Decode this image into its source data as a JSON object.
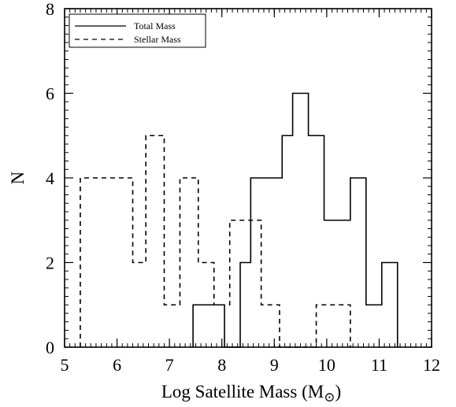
{
  "chart_data": {
    "type": "histogram-step",
    "xlabel": "Log Satellite Mass  (M",
    "xlabel_sub": "⊙",
    "xlabel_close": ")",
    "ylabel": "N",
    "xlim": [
      5,
      12
    ],
    "ylim": [
      0,
      8
    ],
    "x_ticks": [
      "5",
      "6",
      "7",
      "8",
      "9",
      "10",
      "11",
      "12"
    ],
    "y_ticks": [
      "0",
      "2",
      "4",
      "6",
      "8"
    ],
    "x_minor_step": 0.1,
    "y_minor_step": 0.2,
    "legend_position": "top-left",
    "series": [
      {
        "name": "Total Mass",
        "style": "solid",
        "bins": [
          {
            "x0": 7.45,
            "x1": 8.05,
            "y": 1
          },
          {
            "x0": 8.05,
            "x1": 8.35,
            "y": 0
          },
          {
            "x0": 8.35,
            "x1": 8.55,
            "y": 2
          },
          {
            "x0": 8.55,
            "x1": 9.15,
            "y": 4
          },
          {
            "x0": 9.15,
            "x1": 9.35,
            "y": 5
          },
          {
            "x0": 9.35,
            "x1": 9.65,
            "y": 6
          },
          {
            "x0": 9.65,
            "x1": 9.95,
            "y": 5
          },
          {
            "x0": 9.95,
            "x1": 10.45,
            "y": 3
          },
          {
            "x0": 10.45,
            "x1": 10.75,
            "y": 4
          },
          {
            "x0": 10.75,
            "x1": 11.05,
            "y": 1
          },
          {
            "x0": 11.05,
            "x1": 11.35,
            "y": 2
          }
        ]
      },
      {
        "name": "Stellar Mass",
        "style": "dashed",
        "bins": [
          {
            "x0": 5.3,
            "x1": 6.3,
            "y": 4
          },
          {
            "x0": 6.3,
            "x1": 6.55,
            "y": 2
          },
          {
            "x0": 6.55,
            "x1": 6.9,
            "y": 5
          },
          {
            "x0": 6.9,
            "x1": 7.2,
            "y": 1
          },
          {
            "x0": 7.2,
            "x1": 7.55,
            "y": 4
          },
          {
            "x0": 7.55,
            "x1": 7.85,
            "y": 2
          },
          {
            "x0": 7.85,
            "x1": 8.15,
            "y": 1
          },
          {
            "x0": 8.15,
            "x1": 8.75,
            "y": 3
          },
          {
            "x0": 8.75,
            "x1": 9.1,
            "y": 1
          },
          {
            "x0": 9.1,
            "x1": 9.8,
            "y": 0
          },
          {
            "x0": 9.8,
            "x1": 10.45,
            "y": 1
          }
        ]
      }
    ]
  }
}
